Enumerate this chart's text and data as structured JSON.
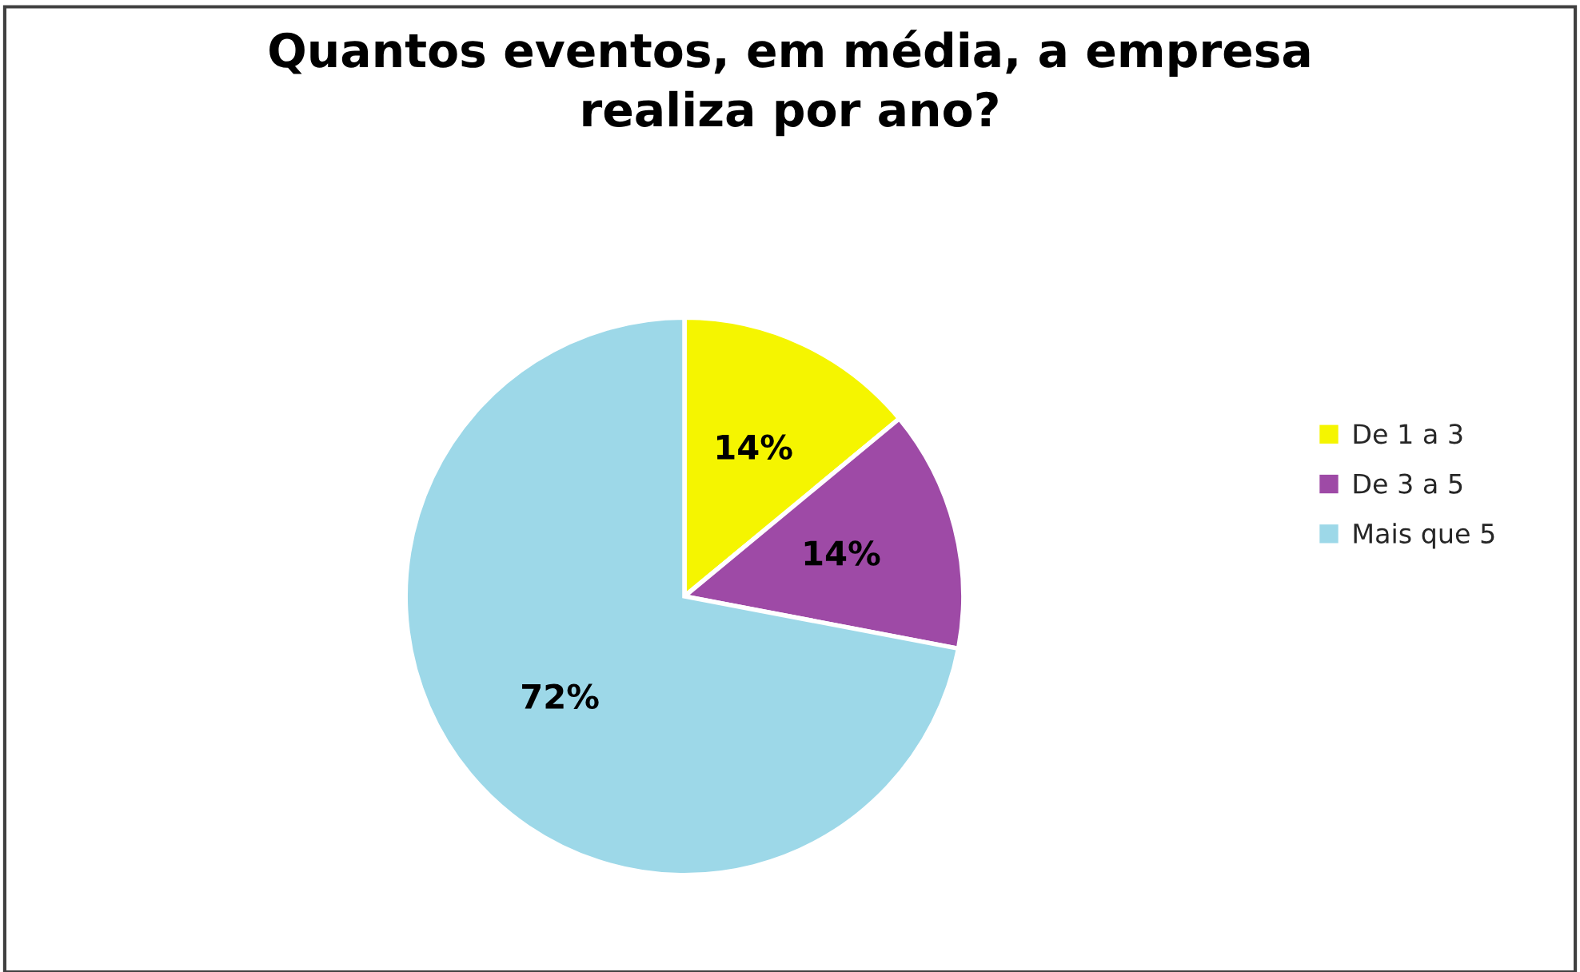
{
  "chart_data": {
    "type": "pie",
    "title": "Quantos eventos, em média, a empresa\nrealiza por ano?",
    "categories": [
      "De 1 a 3",
      "De 3 a 5",
      "Mais que 5"
    ],
    "values": [
      14,
      14,
      72
    ],
    "colors": [
      "#f5f500",
      "#9e4aa6",
      "#9dd8e8"
    ],
    "value_labels": [
      "14%",
      "14%",
      "72%"
    ],
    "legend": "right"
  }
}
